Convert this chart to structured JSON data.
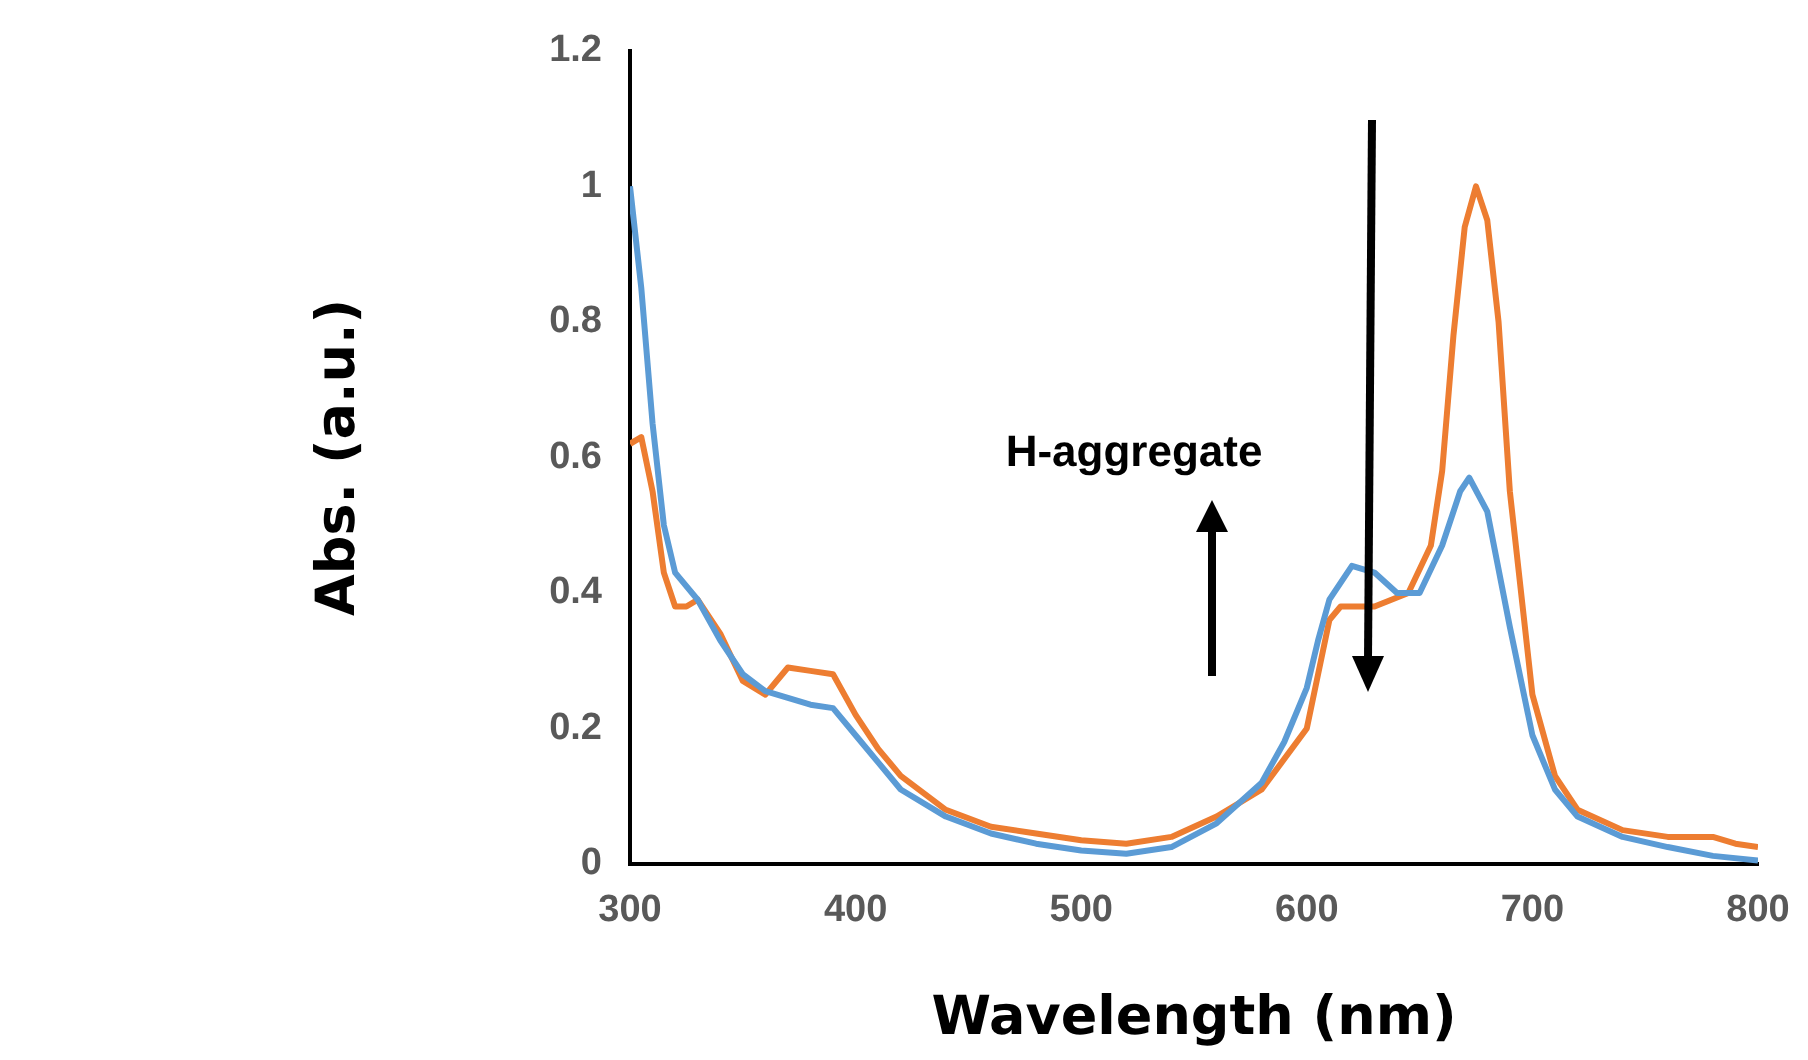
{
  "chart_data": {
    "type": "line",
    "xlabel": "Wavelength (nm)",
    "ylabel": "Abs. (a.u.)",
    "xlim": [
      300,
      800
    ],
    "xticks": [
      300,
      400,
      500,
      600,
      700,
      800
    ],
    "ylim": [
      0,
      1.2
    ],
    "yticks": [
      0,
      0.2,
      0.4,
      0.6,
      0.8,
      1,
      1.2
    ],
    "grid": false,
    "legend": false,
    "marker": "none",
    "line_style": "solid",
    "annotations": [
      "H-aggregate"
    ],
    "series": [
      {
        "color": "#5b9bd5",
        "x": [
          300,
          305,
          310,
          315,
          320,
          330,
          340,
          350,
          360,
          370,
          380,
          390,
          400,
          410,
          420,
          440,
          460,
          480,
          500,
          520,
          540,
          560,
          580,
          590,
          600,
          605,
          610,
          620,
          630,
          640,
          650,
          660,
          668,
          672,
          680,
          690,
          700,
          710,
          720,
          740,
          760,
          780,
          800
        ],
        "values": [
          1.0,
          0.85,
          0.65,
          0.5,
          0.43,
          0.39,
          0.33,
          0.28,
          0.255,
          0.245,
          0.235,
          0.23,
          0.19,
          0.15,
          0.11,
          0.07,
          0.045,
          0.03,
          0.02,
          0.015,
          0.025,
          0.06,
          0.12,
          0.18,
          0.26,
          0.33,
          0.39,
          0.44,
          0.43,
          0.4,
          0.4,
          0.47,
          0.55,
          0.57,
          0.52,
          0.35,
          0.19,
          0.11,
          0.07,
          0.04,
          0.025,
          0.012,
          0.005
        ]
      },
      {
        "color": "#ed7d31",
        "x": [
          300,
          305,
          310,
          315,
          320,
          325,
          330,
          340,
          350,
          360,
          365,
          370,
          380,
          390,
          400,
          410,
          420,
          440,
          460,
          480,
          500,
          520,
          540,
          560,
          580,
          600,
          605,
          610,
          615,
          630,
          645,
          655,
          660,
          665,
          670,
          675,
          680,
          685,
          690,
          700,
          710,
          720,
          740,
          760,
          780,
          790,
          800
        ],
        "values": [
          0.62,
          0.63,
          0.55,
          0.43,
          0.38,
          0.38,
          0.39,
          0.34,
          0.27,
          0.25,
          0.27,
          0.29,
          0.285,
          0.28,
          0.22,
          0.17,
          0.13,
          0.08,
          0.055,
          0.045,
          0.035,
          0.03,
          0.04,
          0.07,
          0.11,
          0.2,
          0.28,
          0.36,
          0.38,
          0.38,
          0.4,
          0.47,
          0.58,
          0.78,
          0.94,
          1.0,
          0.95,
          0.8,
          0.55,
          0.25,
          0.13,
          0.08,
          0.05,
          0.04,
          0.04,
          0.03,
          0.025
        ]
      }
    ]
  }
}
